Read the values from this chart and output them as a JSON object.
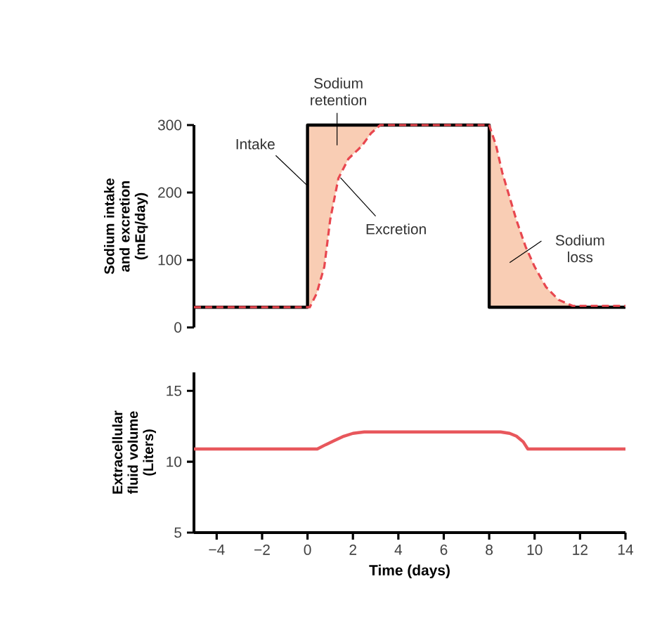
{
  "chart_data": [
    {
      "type": "line",
      "ylabel": "Sodium intake and excretion (mEq/day)",
      "xlim": [
        -5,
        14
      ],
      "ylim": [
        0,
        300
      ],
      "yticks": [
        0,
        100,
        200,
        300
      ],
      "tick_labels": "y",
      "marker": "none",
      "series": [
        {
          "name": "Intake",
          "color": "#000000",
          "line_style": "solid",
          "x": [
            -5,
            0,
            0,
            8,
            8,
            14
          ],
          "values": [
            30,
            30,
            300,
            300,
            30,
            30
          ]
        },
        {
          "name": "Excretion",
          "color": "#e8474f",
          "line_style": "dashed",
          "x": [
            -5,
            0.1,
            0.4,
            0.74,
            1.0,
            1.36,
            1.8,
            2.39,
            2.8,
            3.2,
            8.0,
            8.3,
            8.58,
            9.2,
            9.6,
            10.0,
            10.5,
            11.05,
            11.67,
            14
          ],
          "values": [
            30,
            30,
            50,
            90,
            160,
            221,
            250,
            269,
            288,
            300,
            300,
            270,
            229,
            159,
            120,
            90,
            60,
            41,
            32,
            32
          ]
        }
      ],
      "annotations": [
        "Sodium retention",
        "Sodium loss"
      ]
    },
    {
      "type": "line",
      "xlabel": "Time (days)",
      "ylabel": "Extracellular fluid volume (Liters)",
      "xlim": [
        -5,
        14
      ],
      "ylim": [
        5,
        16.3
      ],
      "marker": "none",
      "xticks": [
        {
          "value": -4,
          "label": "−4"
        },
        {
          "value": -2,
          "label": "−2"
        },
        0,
        2,
        4,
        6,
        8,
        10,
        12,
        14
      ],
      "yticks": [
        5,
        10,
        15
      ],
      "series": [
        {
          "color": "#e8575c",
          "line_style": "solid",
          "x": [
            -5,
            0.43,
            0.8,
            1.2,
            1.6,
            2.0,
            2.5,
            3.0,
            6.0,
            8.5,
            8.9,
            9.2,
            9.5,
            9.7,
            14
          ],
          "values": [
            10.9,
            10.9,
            11.2,
            11.5,
            11.8,
            12.0,
            12.1,
            12.1,
            12.1,
            12.1,
            12.0,
            11.8,
            11.4,
            10.9,
            10.9
          ]
        }
      ]
    }
  ]
}
